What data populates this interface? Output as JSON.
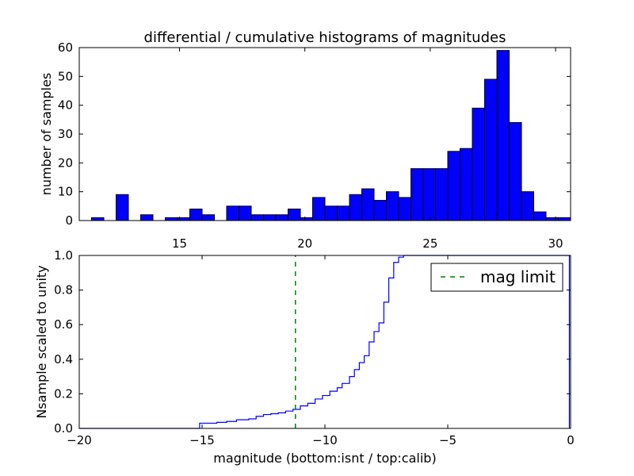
{
  "title": "differential / cumulative histograms of magnitudes",
  "chart_data": [
    {
      "type": "bar",
      "subtype": "histogram",
      "title": "differential / cumulative histograms of magnitudes",
      "xlabel": "",
      "ylabel": "number of samples",
      "xlim": [
        11.0,
        30.6
      ],
      "ylim": [
        0,
        60
      ],
      "xticks": [
        "15",
        "20",
        "25",
        "30"
      ],
      "yticks": [
        "0",
        "10",
        "20",
        "30",
        "40",
        "50",
        "60"
      ],
      "x_axis_position": "top",
      "bin_width": 0.49,
      "bin_edges": [
        11.0,
        11.49,
        11.98,
        12.47,
        12.96,
        13.45,
        13.94,
        14.43,
        14.92,
        15.41,
        15.9,
        16.39,
        16.88,
        17.37,
        17.86,
        18.35,
        18.84,
        19.33,
        19.82,
        20.31,
        20.8,
        21.29,
        21.78,
        22.27,
        22.76,
        23.25,
        23.74,
        24.23,
        24.72,
        25.21,
        25.7,
        26.19,
        26.68,
        27.17,
        27.66,
        28.15,
        28.64,
        29.13,
        29.62,
        30.11,
        30.6
      ],
      "values": [
        0,
        1,
        0,
        9,
        0,
        2,
        0,
        1,
        1,
        4,
        2,
        0,
        5,
        5,
        2,
        2,
        2,
        4,
        1,
        8,
        5,
        5,
        9,
        11,
        7,
        10,
        8,
        18,
        18,
        18,
        24,
        25,
        39,
        49,
        59,
        34,
        10,
        3,
        1,
        1
      ],
      "color": "#0000ff",
      "edge_color": "#000000"
    },
    {
      "type": "line",
      "subtype": "step",
      "xlabel": "magnitude (bottom:isnt / top:calib)",
      "ylabel": "Nsample scaled to unity",
      "xlim": [
        -20,
        0
      ],
      "ylim": [
        0.0,
        1.0
      ],
      "xticks": [
        "−20",
        "−15",
        "−10",
        "−5",
        "0"
      ],
      "yticks": [
        "0.0",
        "0.2",
        "0.4",
        "0.6",
        "0.8",
        "1.0"
      ],
      "series": [
        {
          "color": "#0000ff",
          "x": [
            -20.0,
            -15.1,
            -15.1,
            -14.4,
            -14.0,
            -13.6,
            -13.1,
            -12.8,
            -12.5,
            -12.2,
            -11.9,
            -11.6,
            -11.3,
            -11.0,
            -10.7,
            -10.4,
            -10.1,
            -9.8,
            -9.5,
            -9.3,
            -9.0,
            -8.8,
            -8.6,
            -8.4,
            -8.2,
            -8.0,
            -7.8,
            -7.6,
            -7.4,
            -7.2,
            -7.0,
            -6.8,
            -6.6,
            -6.4,
            -0.05,
            -0.05
          ],
          "y": [
            0.0,
            0.0,
            0.025,
            0.03,
            0.035,
            0.04,
            0.05,
            0.055,
            0.07,
            0.08,
            0.085,
            0.09,
            0.1,
            0.11,
            0.13,
            0.145,
            0.17,
            0.19,
            0.215,
            0.235,
            0.26,
            0.3,
            0.34,
            0.38,
            0.42,
            0.5,
            0.56,
            0.61,
            0.73,
            0.87,
            0.96,
            0.99,
            1.0,
            1.0,
            1.0,
            0.0
          ]
        },
        {
          "name": "mag limit",
          "style": "dashed",
          "color": "#008000",
          "x": [
            -11.2,
            -11.2
          ],
          "y": [
            0.0,
            1.0
          ]
        }
      ],
      "legend": {
        "position": "top-right",
        "entries": [
          "mag limit"
        ]
      }
    }
  ]
}
